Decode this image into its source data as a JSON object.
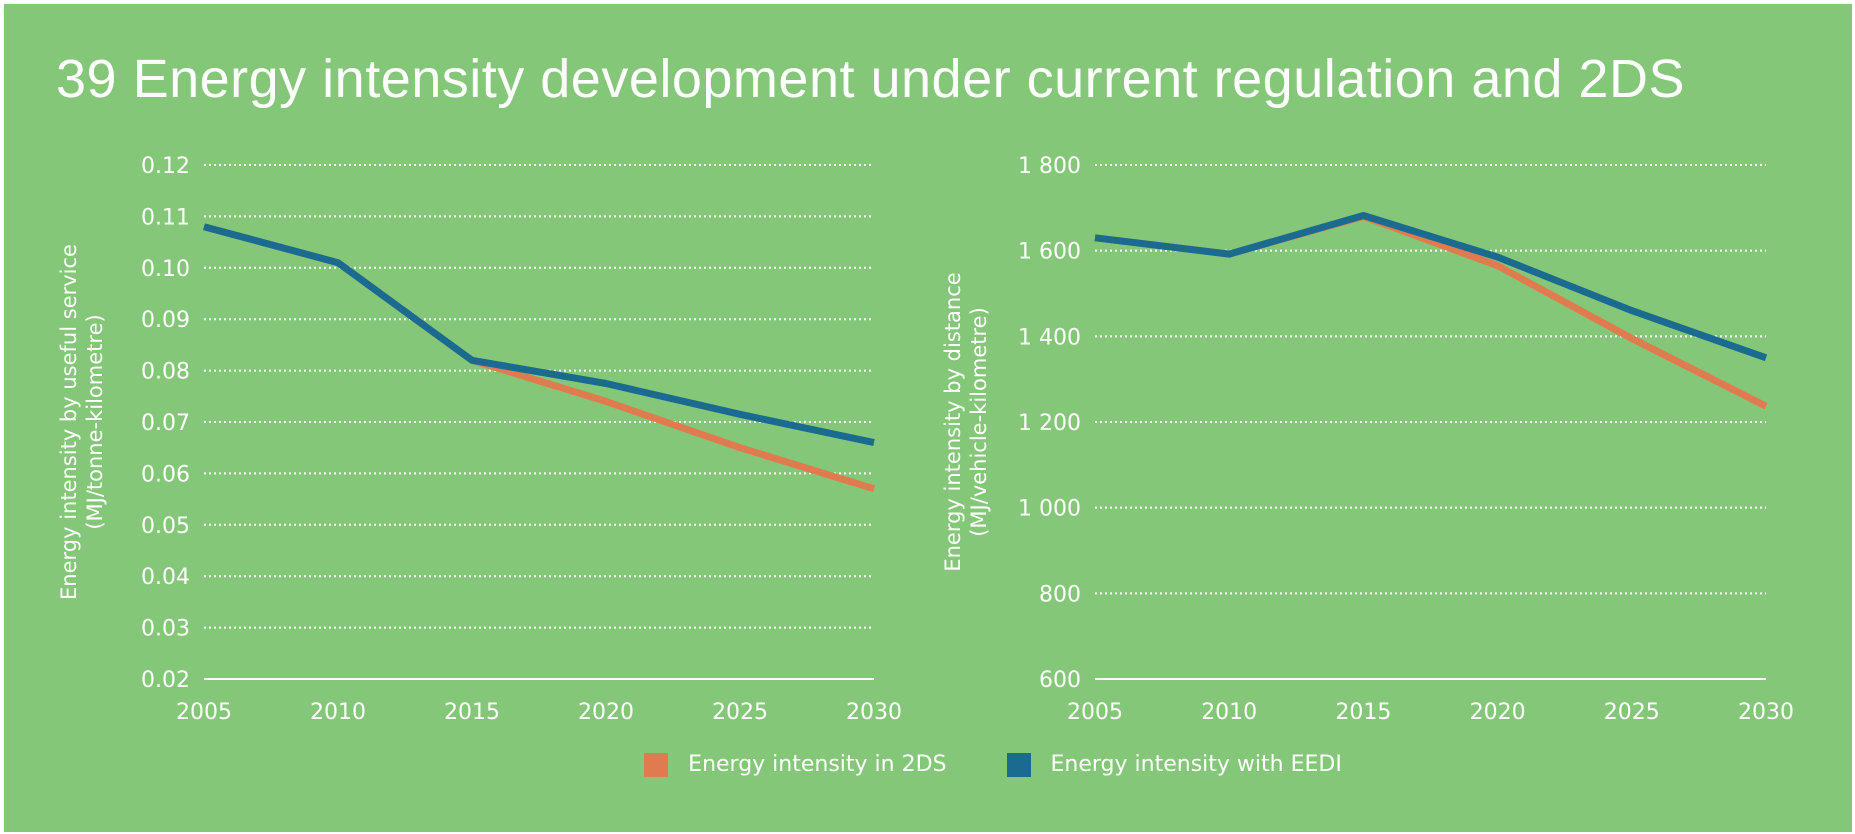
{
  "title": "39 Energy intensity development under current regulation and 2DS",
  "colors": {
    "background": "#85c778",
    "gridline": "#ffffff",
    "series_2ds": "#e07b4f",
    "series_eedi": "#1b6a8f"
  },
  "legend": [
    {
      "name": "Energy intensity in 2DS",
      "color": "#e07b4f"
    },
    {
      "name": "Energy intensity with EEDI",
      "color": "#1b6a8f"
    }
  ],
  "chart_data": [
    {
      "type": "line",
      "ylabel_line1": "Energy intensity by useful service",
      "ylabel_line2": "(MJ/tonne-kilometre)",
      "xlabel": "",
      "x": [
        2005,
        2010,
        2015,
        2020,
        2025,
        2030
      ],
      "xticks": [
        "2005",
        "2010",
        "2015",
        "2020",
        "2025",
        "2030"
      ],
      "ylim": [
        0.02,
        0.12
      ],
      "yticks": [
        "0.02",
        "0.03",
        "0.04",
        "0.05",
        "0.06",
        "0.07",
        "0.08",
        "0.09",
        "0.10",
        "0.11",
        "0.12"
      ],
      "yticks_values": [
        0.02,
        0.03,
        0.04,
        0.05,
        0.06,
        0.07,
        0.08,
        0.09,
        0.1,
        0.11,
        0.12
      ],
      "grid": true,
      "series": [
        {
          "name": "Energy intensity in 2DS",
          "values": [
            0.108,
            0.101,
            0.082,
            0.074,
            0.065,
            0.057
          ]
        },
        {
          "name": "Energy intensity with EEDI",
          "values": [
            0.108,
            0.101,
            0.082,
            0.0775,
            0.0715,
            0.066
          ]
        }
      ]
    },
    {
      "type": "line",
      "ylabel_line1": "Energy intensity by distance",
      "ylabel_line2": "(MJ/vehicle-kilometre)",
      "xlabel": "",
      "x": [
        2005,
        2010,
        2015,
        2020,
        2025,
        2030
      ],
      "xticks": [
        "2005",
        "2010",
        "2015",
        "2020",
        "2025",
        "2030"
      ],
      "ylim": [
        600,
        1800
      ],
      "yticks": [
        "600",
        "800",
        "1 000",
        "1 200",
        "1 400",
        "1 600",
        "1 800"
      ],
      "yticks_values": [
        600,
        800,
        1000,
        1200,
        1400,
        1600,
        1800
      ],
      "grid": true,
      "series": [
        {
          "name": "Energy intensity in 2DS",
          "values": [
            1630,
            1592,
            1680,
            1565,
            1395,
            1237
          ]
        },
        {
          "name": "Energy intensity with EEDI",
          "values": [
            1630,
            1592,
            1682,
            1585,
            1460,
            1350
          ]
        }
      ]
    }
  ]
}
